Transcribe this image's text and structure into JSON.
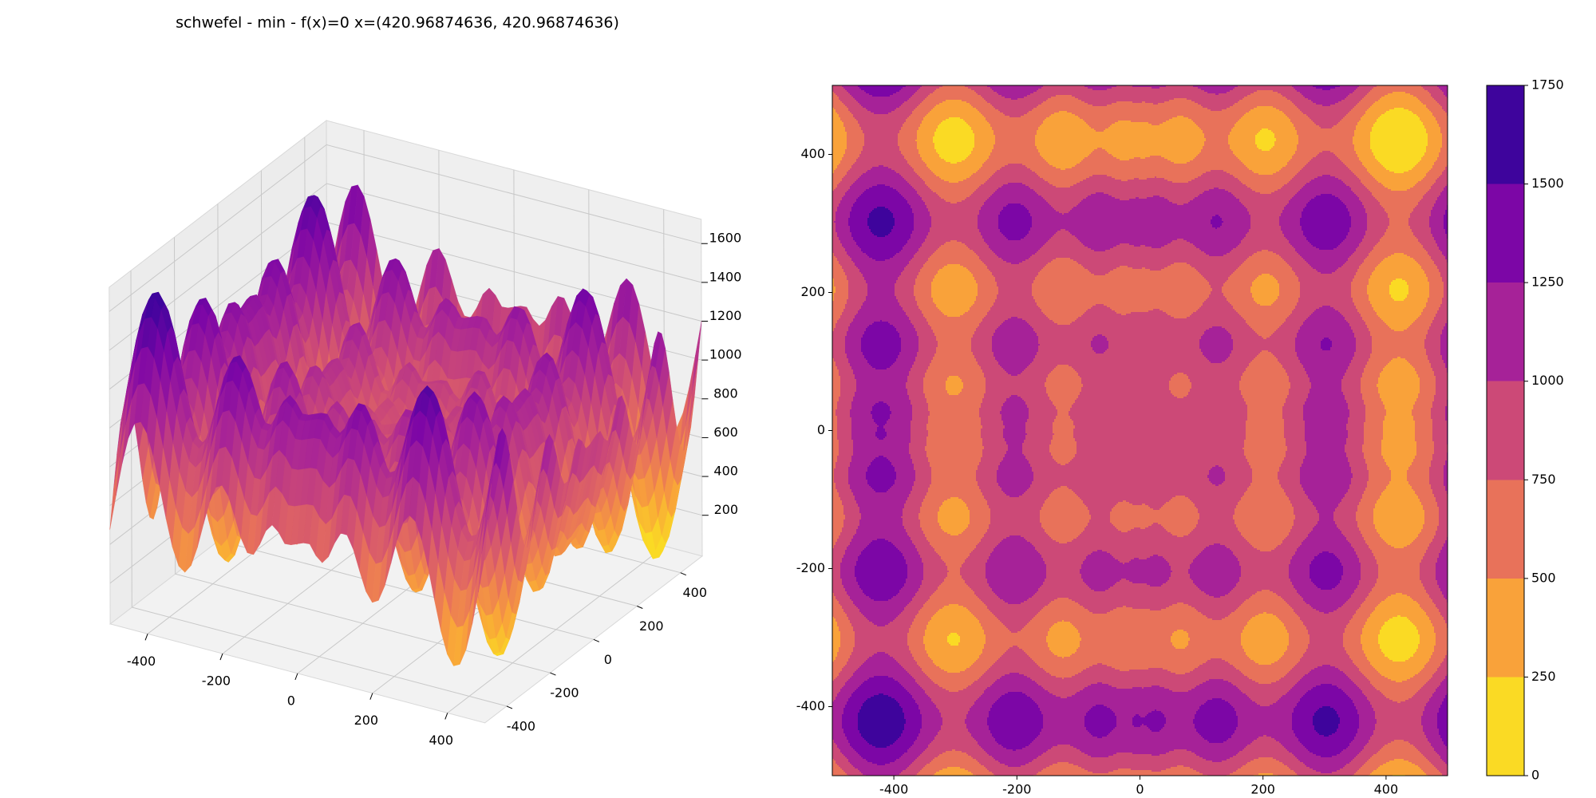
{
  "chart_data": [
    {
      "type": "surface3d",
      "title": "schwefel - min - f(x)=0 x=(420.96874636, 420.96874636)",
      "minimum": {
        "f": 0,
        "x": [
          420.96874636,
          420.96874636
        ]
      },
      "xlim": [
        -500,
        500
      ],
      "ylim": [
        -500,
        500
      ],
      "zlim": [
        -10,
        1725
      ],
      "xticks": [
        -400,
        -200,
        0,
        200,
        400
      ],
      "yticks": [
        -400,
        -200,
        0,
        200,
        400
      ],
      "zticks": [
        200,
        400,
        600,
        800,
        1000,
        1200,
        1400,
        1600
      ],
      "grid": true
    },
    {
      "type": "contourf",
      "xlim": [
        -500,
        500
      ],
      "ylim": [
        -500,
        500
      ],
      "xticks": [
        -400,
        -200,
        0,
        200,
        400
      ],
      "yticks": [
        -400,
        -200,
        0,
        200,
        400
      ],
      "levels": [
        0,
        250,
        500,
        750,
        1000,
        1250,
        1500,
        1750
      ],
      "colors": [
        "#fada24",
        "#f9a23a",
        "#e8725a",
        "#cc4977",
        "#a62298",
        "#7c06a6",
        "#3e049c"
      ],
      "colorbar": true
    }
  ]
}
